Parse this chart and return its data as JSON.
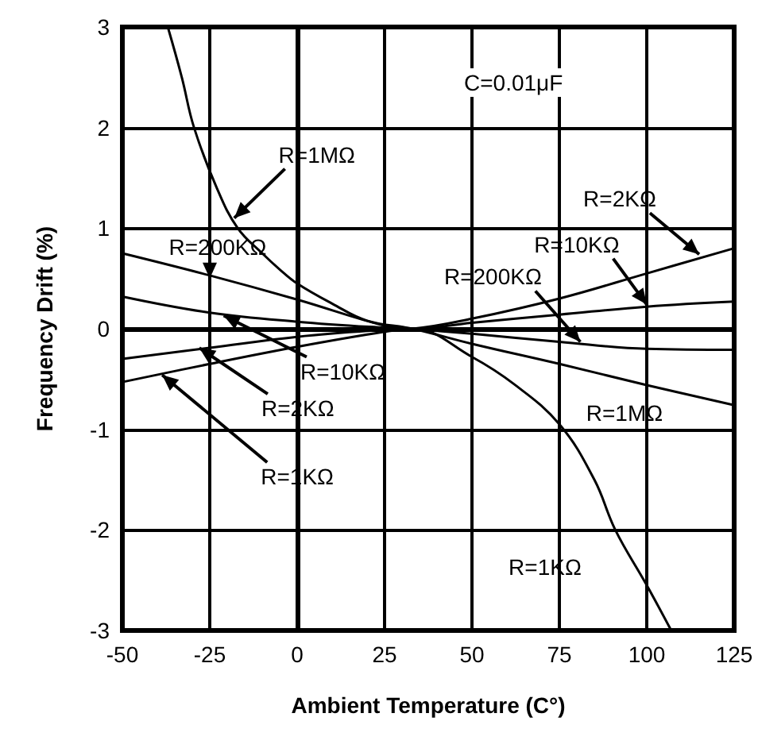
{
  "chart_data": {
    "type": "line",
    "xlabel": "Ambient Temperature (C°)",
    "ylabel": "Frequency Drift (%)",
    "xlim": [
      -50,
      125
    ],
    "xticks": [
      -50,
      -25,
      0,
      25,
      50,
      75,
      100,
      125
    ],
    "ylim": [
      -3,
      3
    ],
    "yticks": [
      -3,
      -2,
      -1,
      0,
      1,
      2,
      3
    ],
    "grid": true,
    "marker": "none",
    "line_style": "solid",
    "series": [
      {
        "color": "#000000",
        "x": [
          -37,
          -33,
          -29.5,
          -23,
          -17,
          -10,
          -5,
          0,
          10,
          20,
          33,
          50,
          75,
          100,
          125
        ],
        "values": [
          3,
          2.5,
          2,
          1.4,
          1,
          0.75,
          0.59,
          0.45,
          0.25,
          0.08,
          0,
          -0.15,
          -0.35,
          -0.56,
          -0.76
        ]
      },
      {
        "color": "#000000",
        "x": [
          -50,
          -25,
          0,
          25,
          33,
          50,
          75,
          100,
          125
        ],
        "values": [
          0.75,
          0.53,
          0.29,
          0.03,
          0,
          -0.05,
          -0.13,
          -0.2,
          -0.21
        ]
      },
      {
        "color": "#000000",
        "x": [
          -50,
          -25,
          0,
          25,
          33,
          50,
          75,
          100,
          125
        ],
        "values": [
          0.32,
          0.16,
          0.07,
          0.01,
          0,
          0.06,
          0.14,
          0.22,
          0.27
        ]
      },
      {
        "color": "#000000",
        "x": [
          -50,
          -25,
          0,
          25,
          33,
          50,
          75,
          100,
          125
        ],
        "values": [
          -0.3,
          -0.19,
          -0.08,
          -0.01,
          0,
          0.1,
          0.3,
          0.55,
          0.8
        ]
      },
      {
        "color": "#000000",
        "x": [
          -50,
          -25,
          0,
          25,
          33,
          50,
          62,
          75,
          85,
          91,
          100,
          107
        ],
        "values": [
          -0.53,
          -0.35,
          -0.18,
          -0.03,
          0,
          -0.28,
          -0.55,
          -0.95,
          -1.5,
          -2,
          -2.55,
          -3
        ]
      }
    ],
    "annotations": [
      "C=0.01μF",
      {
        "text": "R=1MΩ",
        "x": -18,
        "y": 1.1
      },
      {
        "text": "R=2KΩ",
        "x": 115,
        "y": 0.74
      },
      {
        "text": "R=10KΩ",
        "x": 100,
        "y": 0.24
      },
      {
        "text": "R=200KΩ",
        "x": 81,
        "y": -0.13
      },
      {
        "text": "R=200KΩ",
        "x": -25,
        "y": 0.5
      },
      {
        "text": "R=10KΩ",
        "x": -21,
        "y": 0.13
      },
      {
        "text": "R=2KΩ",
        "x": -28,
        "y": -0.19
      },
      {
        "text": "R=1KΩ",
        "x": -38.6,
        "y": -0.46
      },
      "R=1MΩ",
      "R=1KΩ"
    ]
  }
}
